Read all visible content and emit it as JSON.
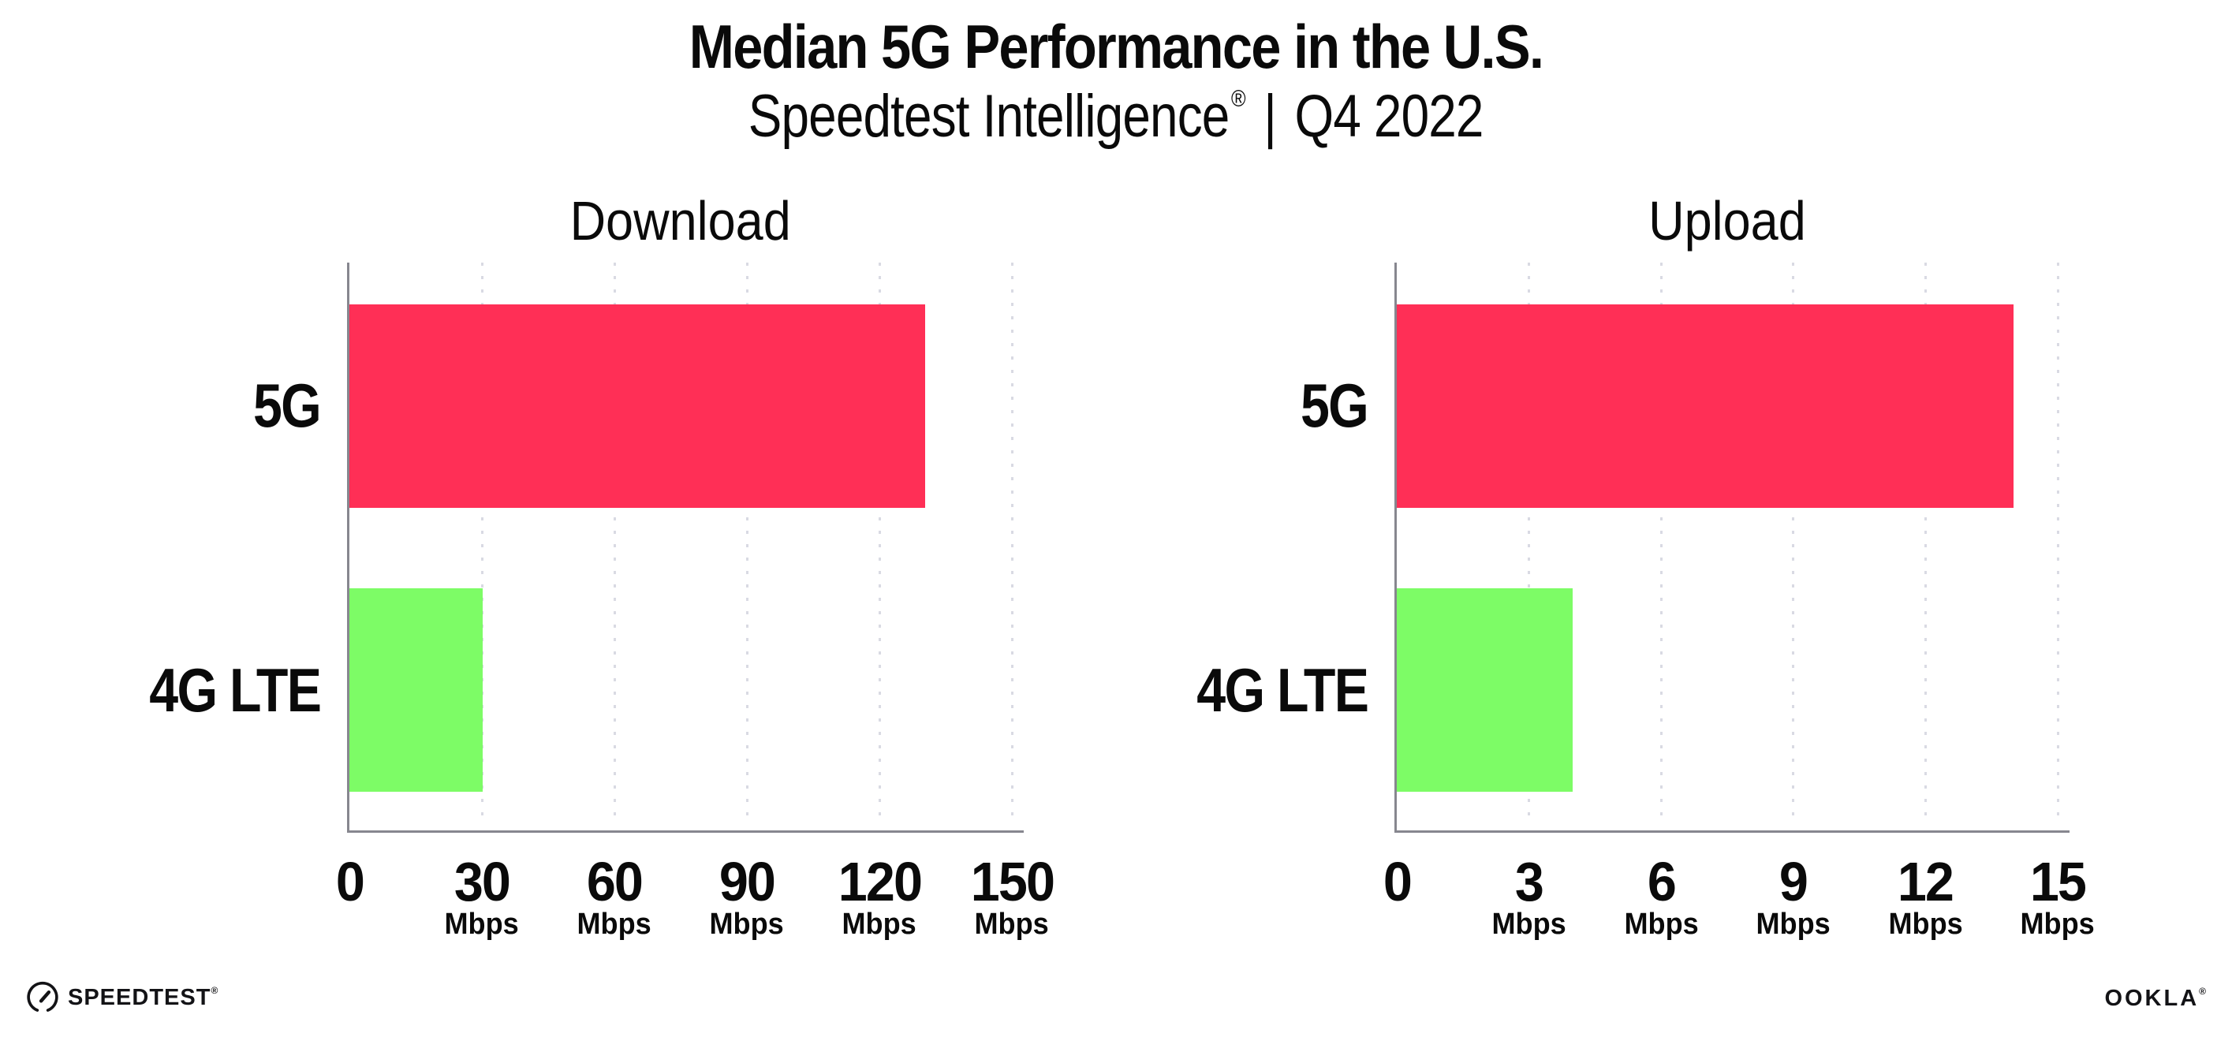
{
  "header": {
    "title": "Median 5G Performance in the U.S.",
    "subtitle_brand": "Speedtest Intelligence",
    "subtitle_reg": "®",
    "subtitle_separator": "|",
    "subtitle_period": "Q4 2022"
  },
  "chart_data": [
    {
      "type": "bar",
      "orientation": "horizontal",
      "title": "Download",
      "categories": [
        "5G",
        "4G LTE"
      ],
      "values": [
        130.4,
        30.2
      ],
      "unit": "Mbps",
      "xlim": [
        0,
        150
      ],
      "xticks": [
        0,
        30,
        60,
        90,
        120,
        150
      ],
      "bar_colors": [
        "#ff2f56",
        "#7dfc66"
      ],
      "grid": "vertical-dotted",
      "legend": "none"
    },
    {
      "type": "bar",
      "orientation": "horizontal",
      "title": "Upload",
      "categories": [
        "5G",
        "4G LTE"
      ],
      "values": [
        14.0,
        4.0
      ],
      "unit": "Mbps",
      "xlim": [
        0,
        15
      ],
      "xticks": [
        0,
        3,
        6,
        9,
        12,
        15
      ],
      "bar_colors": [
        "#ff2f56",
        "#7dfc66"
      ],
      "grid": "vertical-dotted",
      "legend": "none"
    }
  ],
  "colors": {
    "bar_5g": "#ff2f56",
    "bar_4g_lte": "#7dfc66",
    "axis": "#87878f",
    "gridline": "#d9dae3",
    "text": "#0a0a0a"
  },
  "footer": {
    "speedtest_text": "SPEEDTEST",
    "speedtest_mark": "®",
    "ookla_text": "OOKLA",
    "ookla_mark": "®"
  }
}
